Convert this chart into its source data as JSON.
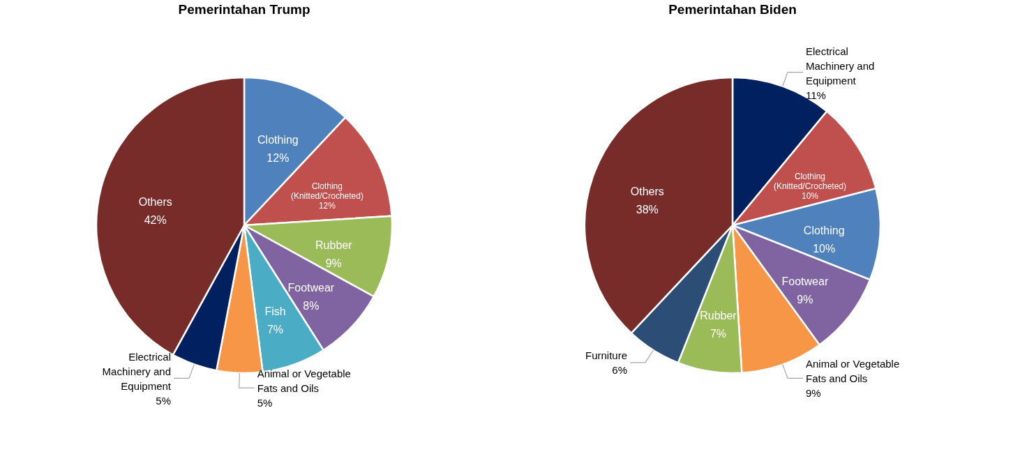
{
  "chart_data": [
    {
      "type": "pie",
      "title": "Pemerintahan Trump",
      "categories": [
        "Clothing",
        "Clothing (Knitted/Crocheted)",
        "Rubber",
        "Footwear",
        "Fish",
        "Animal or Vegetable Fats and Oils",
        "Electrical Machinery and Equipment",
        "Others"
      ],
      "values": [
        12,
        12,
        9,
        8,
        7,
        5,
        5,
        42
      ],
      "value_labels": [
        "12%",
        "12%",
        "9%",
        "8%",
        "7%",
        "5%",
        "5%",
        "42%"
      ],
      "colors": [
        "#4f81bd",
        "#c0504d",
        "#9bbb59",
        "#8064a2",
        "#4bacc6",
        "#f79646",
        "#002060",
        "#772c2a"
      ],
      "legend": false
    },
    {
      "type": "pie",
      "title": "Pemerintahan Biden",
      "categories": [
        "Electrical Machinery and Equipment",
        "Clothing (Knitted/Crocheted)",
        "Clothing",
        "Footwear",
        "Animal or Vegetable Fats and Oils",
        "Rubber",
        "Furniture",
        "Others"
      ],
      "values": [
        11,
        10,
        10,
        9,
        9,
        7,
        6,
        38
      ],
      "value_labels": [
        "11%",
        "10%",
        "10%",
        "9%",
        "9%",
        "7%",
        "6%",
        "38%"
      ],
      "colors": [
        "#002060",
        "#c0504d",
        "#4f81bd",
        "#8064a2",
        "#f79646",
        "#9bbb59",
        "#2c4d75",
        "#772c2a"
      ],
      "legend": false
    }
  ]
}
